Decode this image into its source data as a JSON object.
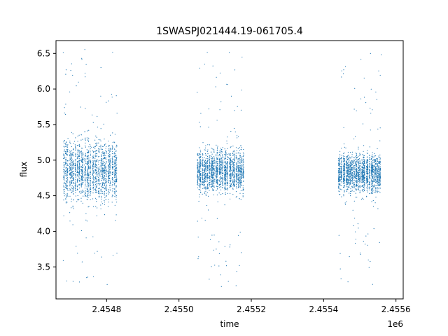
{
  "chart_data": {
    "type": "scatter",
    "title": "1SWASPJ021444.19-061705.4",
    "xlabel": "time",
    "ylabel": "flux",
    "x_offset_label": "1e6",
    "xlim": [
      2.45466,
      2.45562
    ],
    "ylim": [
      3.05,
      6.68
    ],
    "x_ticks": [
      2.4548,
      2.455,
      2.4552,
      2.4554,
      2.4556
    ],
    "x_tick_labels": [
      "2.4548",
      "2.4550",
      "2.4552",
      "2.4554",
      "2.4556"
    ],
    "y_ticks": [
      3.5,
      4.0,
      4.5,
      5.0,
      5.5,
      6.0,
      6.5
    ],
    "y_tick_labels": [
      "3.5",
      "4.0",
      "4.5",
      "5.0",
      "5.5",
      "6.0",
      "6.5"
    ],
    "grid": false,
    "marker_color": "#1f77b4",
    "series": [
      {
        "segments": [
          {
            "x_range": [
              2.45468,
              2.45483
            ],
            "y_center": 4.85,
            "y_spread": 0.35,
            "outlier_y_range": [
              3.2,
              6.6
            ]
          },
          {
            "x_range": [
              2.45505,
              2.45518
            ],
            "y_center": 4.85,
            "y_spread": 0.25,
            "outlier_y_range": [
              3.2,
              6.55
            ]
          },
          {
            "x_range": [
              2.45544,
              2.45556
            ],
            "y_center": 4.82,
            "y_spread": 0.22,
            "outlier_y_range": [
              3.2,
              6.5
            ]
          }
        ]
      }
    ]
  }
}
